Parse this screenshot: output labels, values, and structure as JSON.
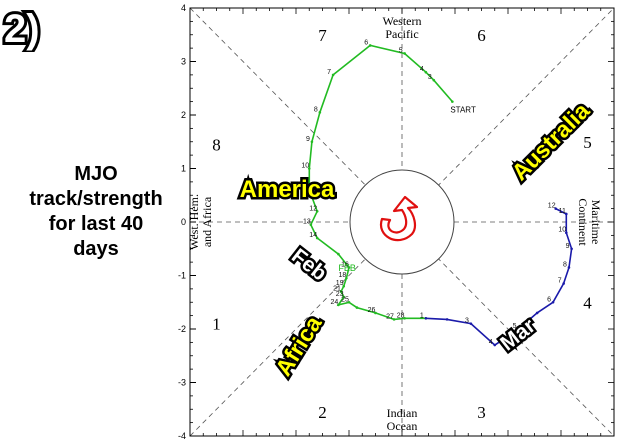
{
  "panel_number": "2)",
  "caption_lines": [
    "MJO",
    "track/strength",
    "for last 40",
    "days"
  ],
  "colors": {
    "green_track": "#22bb22",
    "blue_track": "#1a1aaa",
    "red_arrow": "#e01010",
    "callout_fill": "#ffff00",
    "axis": "#000000"
  },
  "icons": {
    "rotation": "curved-arrow-icon"
  },
  "chart_data": {
    "type": "scatter",
    "subtype": "mjo-phase-diagram",
    "xlim": [
      -4,
      4
    ],
    "ylim": [
      -4,
      4
    ],
    "x_ticks": [],
    "y_ticks": [
      "-4",
      "-3",
      "-2",
      "-1",
      "0",
      "1",
      "2",
      "3",
      "4"
    ],
    "grid": false,
    "region_labels": {
      "western_pacific": [
        "Western",
        "Pacific"
      ],
      "maritime_continent": [
        "Maritime",
        "Continent"
      ],
      "indian_ocean": [
        "Indian",
        "Ocean"
      ],
      "west_hem_africa": [
        "West. Hem.",
        "and Africa"
      ]
    },
    "phases": [
      {
        "label": "1",
        "x": -3.5,
        "y": -1.9
      },
      {
        "label": "2",
        "x": -1.5,
        "y": -3.55
      },
      {
        "label": "3",
        "x": 1.5,
        "y": -3.55
      },
      {
        "label": "4",
        "x": 3.5,
        "y": -1.5
      },
      {
        "label": "5",
        "x": 3.5,
        "y": 1.5
      },
      {
        "label": "6",
        "x": 1.5,
        "y": 3.5
      },
      {
        "label": "7",
        "x": -1.5,
        "y": 3.5
      },
      {
        "label": "8",
        "x": -3.5,
        "y": 1.45
      }
    ],
    "start_label": "START",
    "month_marker": "FEB",
    "series": [
      {
        "color": "#22bb22",
        "points": [
          {
            "x": 0.95,
            "y": 2.25,
            "label": ""
          },
          {
            "x": 0.6,
            "y": 2.65,
            "label": "3"
          },
          {
            "x": 0.45,
            "y": 2.8,
            "label": "4"
          },
          {
            "x": 0.05,
            "y": 3.15,
            "label": "5"
          },
          {
            "x": -0.6,
            "y": 3.3,
            "label": "6"
          },
          {
            "x": -1.3,
            "y": 2.75,
            "label": "7"
          },
          {
            "x": -1.55,
            "y": 2.05,
            "label": "8"
          },
          {
            "x": -1.7,
            "y": 1.5,
            "label": "9"
          },
          {
            "x": -1.75,
            "y": 1.0,
            "label": "10"
          },
          {
            "x": -1.75,
            "y": 0.6,
            "label": "11"
          },
          {
            "x": -1.6,
            "y": 0.2,
            "label": "12"
          },
          {
            "x": -1.72,
            "y": -0.05,
            "label": "13"
          },
          {
            "x": -1.6,
            "y": -0.3,
            "label": "14"
          },
          {
            "x": -1.2,
            "y": -0.6,
            "label": ""
          },
          {
            "x": -1.0,
            "y": -0.85,
            "label": "16"
          },
          {
            "x": -1.05,
            "y": -1.05,
            "label": "18"
          },
          {
            "x": -1.1,
            "y": -1.2,
            "label": "19"
          },
          {
            "x": -1.15,
            "y": -1.3,
            "label": "21"
          },
          {
            "x": -1.1,
            "y": -1.4,
            "label": "23"
          },
          {
            "x": -1.2,
            "y": -1.55,
            "label": "24"
          },
          {
            "x": -1.0,
            "y": -1.5,
            "label": "25"
          },
          {
            "x": -0.85,
            "y": -1.6,
            "label": ""
          },
          {
            "x": -0.5,
            "y": -1.7,
            "label": "26"
          },
          {
            "x": -0.15,
            "y": -1.82,
            "label": "27"
          },
          {
            "x": 0.05,
            "y": -1.8,
            "label": "28"
          },
          {
            "x": 0.45,
            "y": -1.8,
            "label": ""
          }
        ]
      },
      {
        "color": "#1a1aaa",
        "points": [
          {
            "x": 0.45,
            "y": -1.8,
            "label": "1"
          },
          {
            "x": 0.85,
            "y": -1.82,
            "label": ""
          },
          {
            "x": 1.3,
            "y": -1.9,
            "label": "3"
          },
          {
            "x": 1.75,
            "y": -2.3,
            "label": "4"
          },
          {
            "x": 2.2,
            "y": -2.0,
            "label": "5"
          },
          {
            "x": 2.55,
            "y": -1.7,
            "label": ""
          },
          {
            "x": 2.85,
            "y": -1.5,
            "label": "6"
          },
          {
            "x": 3.05,
            "y": -1.15,
            "label": "7"
          },
          {
            "x": 3.15,
            "y": -0.85,
            "label": "8"
          },
          {
            "x": 3.2,
            "y": -0.5,
            "label": "9"
          },
          {
            "x": 3.1,
            "y": -0.2,
            "label": "10"
          },
          {
            "x": 3.1,
            "y": 0.15,
            "label": "11"
          },
          {
            "x": 2.9,
            "y": 0.25,
            "label": "12"
          }
        ]
      }
    ],
    "annotations": [
      {
        "text": "America",
        "style": "callout"
      },
      {
        "text": "Australia",
        "style": "callout"
      },
      {
        "text": "Africa",
        "style": "callout"
      },
      {
        "text": "Feb",
        "style": "bold"
      },
      {
        "text": "Mar",
        "style": "bold"
      }
    ]
  }
}
